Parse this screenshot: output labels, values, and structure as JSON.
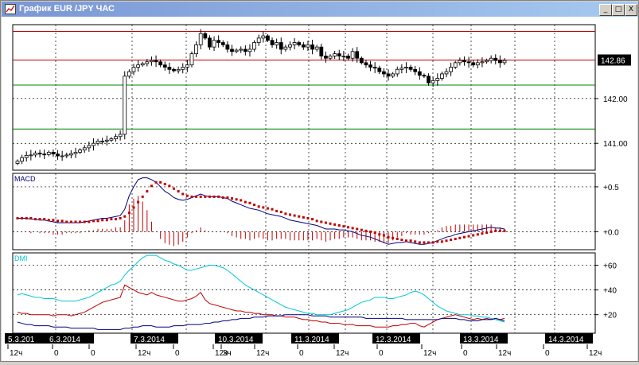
{
  "window": {
    "title": "График EUR /JPY ЧАС",
    "min_icon": "minimize-icon",
    "max_icon": "maximize-icon",
    "close_icon": "close-icon",
    "min_glyph": "_",
    "max_glyph": "□",
    "close_glyph": "X"
  },
  "colors": {
    "background": "#ffffff",
    "grid": "#000000",
    "candle": "#000000",
    "macd_line": "#000080",
    "macd_signal": "#c00000",
    "macd_hist": "#c00000",
    "dmi_adx": "#00c8d2",
    "dmi_plus": "#c00000",
    "dmi_minus": "#000080",
    "level_red": "#c00000",
    "level_green": "#008000"
  },
  "chart_data": [
    {
      "type": "candlestick",
      "title": "",
      "ylim": [
        140.4,
        143.65
      ],
      "y_ticks": [
        {
          "value": 141.0,
          "label": "141.00"
        },
        {
          "value": 142.0,
          "label": "142.00"
        }
      ],
      "current_price": {
        "value": 142.86,
        "label": "142.86"
      },
      "horizontal_levels": [
        {
          "value": 143.5,
          "color": "#c00000"
        },
        {
          "value": 142.86,
          "color": "#c00000"
        },
        {
          "value": 142.3,
          "color": "#008000"
        },
        {
          "value": 141.32,
          "color": "#008000"
        }
      ],
      "close": [
        140.6,
        140.68,
        140.73,
        140.74,
        140.78,
        140.76,
        140.75,
        140.8,
        140.76,
        140.72,
        140.72,
        140.74,
        140.77,
        140.8,
        140.85,
        140.9,
        140.95,
        141.0,
        141.05,
        141.05,
        141.07,
        141.1,
        141.15,
        141.2,
        142.5,
        142.6,
        142.7,
        142.75,
        142.78,
        142.82,
        142.85,
        142.82,
        142.75,
        142.7,
        142.65,
        142.62,
        142.65,
        142.7,
        142.75,
        143.0,
        143.2,
        143.45,
        143.35,
        143.15,
        143.3,
        143.25,
        143.2,
        143.1,
        143.05,
        143.08,
        143.1,
        143.05,
        143.1,
        143.25,
        143.35,
        143.4,
        143.3,
        143.2,
        143.25,
        143.1,
        143.15,
        143.2,
        143.25,
        143.2,
        143.15,
        143.2,
        143.1,
        143.15,
        142.95,
        142.9,
        142.95,
        143.0,
        142.95,
        142.95,
        142.9,
        143.05,
        142.9,
        142.8,
        142.75,
        142.7,
        142.68,
        142.6,
        142.55,
        142.5,
        142.55,
        142.65,
        142.68,
        142.7,
        142.65,
        142.6,
        142.52,
        142.5,
        142.35,
        142.4,
        142.45,
        142.55,
        142.6,
        142.7,
        142.8,
        142.85,
        142.82,
        142.8,
        142.75,
        142.8,
        142.82,
        142.85,
        142.9,
        142.85,
        142.8,
        142.85
      ]
    },
    {
      "type": "line",
      "title": "MACD",
      "ylim": [
        -0.2,
        0.65
      ],
      "y_ticks": [
        {
          "value": 0.5,
          "label": "+0.5"
        },
        {
          "value": 0.0,
          "label": "+0.0"
        }
      ],
      "series": [
        {
          "values": [
            0.15,
            0.15,
            0.15,
            0.14,
            0.14,
            0.13,
            0.13,
            0.12,
            0.11,
            0.1,
            0.1,
            0.1,
            0.1,
            0.1,
            0.1,
            0.11,
            0.12,
            0.13,
            0.14,
            0.15,
            0.15,
            0.16,
            0.17,
            0.18,
            0.25,
            0.4,
            0.5,
            0.58,
            0.6,
            0.6,
            0.58,
            0.55,
            0.5,
            0.45,
            0.42,
            0.38,
            0.36,
            0.35,
            0.36,
            0.38,
            0.4,
            0.42,
            0.4,
            0.39,
            0.39,
            0.39,
            0.38,
            0.37,
            0.34,
            0.32,
            0.3,
            0.28,
            0.26,
            0.25,
            0.24,
            0.22,
            0.2,
            0.19,
            0.18,
            0.17,
            0.15,
            0.13,
            0.12,
            0.11,
            0.1,
            0.09,
            0.08,
            0.07,
            0.05,
            0.03,
            0.03,
            0.03,
            0.02,
            0.02,
            0.01,
            0.0,
            -0.02,
            -0.04,
            -0.05,
            -0.06,
            -0.08,
            -0.1,
            -0.12,
            -0.14,
            -0.13,
            -0.12,
            -0.12,
            -0.11,
            -0.12,
            -0.13,
            -0.14,
            -0.14,
            -0.13,
            -0.12,
            -0.1,
            -0.08,
            -0.06,
            -0.05,
            -0.03,
            -0.02,
            -0.01,
            0.0,
            0.01,
            0.02,
            0.03,
            0.04,
            0.05,
            0.04,
            0.04,
            0.03
          ]
        },
        {
          "values": [
            0.15,
            0.15,
            0.15,
            0.15,
            0.14,
            0.14,
            0.14,
            0.13,
            0.13,
            0.12,
            0.12,
            0.11,
            0.11,
            0.11,
            0.11,
            0.11,
            0.11,
            0.12,
            0.12,
            0.13,
            0.13,
            0.14,
            0.14,
            0.15,
            0.17,
            0.21,
            0.27,
            0.33,
            0.39,
            0.45,
            0.51,
            0.55,
            0.55,
            0.53,
            0.51,
            0.48,
            0.45,
            0.42,
            0.4,
            0.39,
            0.39,
            0.39,
            0.39,
            0.39,
            0.39,
            0.39,
            0.38,
            0.38,
            0.37,
            0.36,
            0.35,
            0.33,
            0.32,
            0.3,
            0.28,
            0.27,
            0.26,
            0.25,
            0.23,
            0.22,
            0.2,
            0.19,
            0.18,
            0.17,
            0.16,
            0.15,
            0.14,
            0.12,
            0.11,
            0.1,
            0.09,
            0.08,
            0.07,
            0.06,
            0.05,
            0.04,
            0.03,
            0.02,
            0.01,
            0.0,
            -0.01,
            -0.03,
            -0.04,
            -0.06,
            -0.07,
            -0.08,
            -0.09,
            -0.1,
            -0.1,
            -0.11,
            -0.12,
            -0.12,
            -0.12,
            -0.12,
            -0.11,
            -0.11,
            -0.1,
            -0.09,
            -0.08,
            -0.07,
            -0.06,
            -0.05,
            -0.04,
            -0.03,
            -0.02,
            -0.01,
            0.0,
            0.01,
            0.01,
            0.01
          ]
        }
      ]
    },
    {
      "type": "line",
      "title": "DMI",
      "ylim": [
        5,
        70
      ],
      "y_ticks": [
        {
          "value": 60,
          "label": "+60"
        },
        {
          "value": 40,
          "label": "+40"
        },
        {
          "value": 20,
          "label": "+20"
        }
      ],
      "series": [
        {
          "values": [
            36,
            37,
            36,
            35,
            34,
            34,
            33,
            33,
            33,
            32,
            31,
            31,
            31,
            31,
            32,
            33,
            34,
            36,
            38,
            40,
            42,
            44,
            45,
            47,
            52,
            56,
            59,
            63,
            66,
            68,
            68,
            68,
            66,
            64,
            63,
            61,
            60,
            58,
            56,
            56,
            57,
            58,
            59,
            60,
            60,
            59,
            58,
            56,
            53,
            50,
            47,
            44,
            42,
            40,
            38,
            36,
            34,
            32,
            30,
            28,
            26,
            25,
            24,
            23,
            22,
            21,
            21,
            20,
            20,
            20,
            20,
            21,
            22,
            23,
            24,
            26,
            28,
            30,
            31,
            32,
            34,
            34,
            34,
            33,
            33,
            34,
            35,
            36,
            38,
            39,
            38,
            36,
            33,
            30,
            27,
            25,
            23,
            22,
            21,
            20,
            20,
            20,
            19,
            19,
            18,
            18,
            17,
            16,
            15,
            14
          ]
        },
        {
          "values": [
            22,
            21,
            21,
            20,
            20,
            20,
            20,
            20,
            19,
            20,
            20,
            20,
            19,
            20,
            21,
            22,
            24,
            26,
            28,
            30,
            31,
            32,
            33,
            34,
            44,
            42,
            40,
            38,
            37,
            36,
            38,
            36,
            35,
            34,
            33,
            32,
            31,
            31,
            32,
            33,
            35,
            38,
            32,
            29,
            28,
            27,
            26,
            25,
            24,
            23,
            23,
            22,
            22,
            21,
            21,
            20,
            20,
            20,
            19,
            19,
            18,
            18,
            18,
            17,
            16,
            16,
            15,
            15,
            14,
            14,
            13,
            13,
            13,
            12,
            12,
            12,
            11,
            11,
            11,
            11,
            10,
            10,
            10,
            10,
            11,
            11,
            12,
            12,
            13,
            13,
            11,
            10,
            12,
            14,
            16,
            17,
            18,
            19,
            20,
            19,
            18,
            17,
            16,
            17,
            16,
            17,
            16,
            17,
            16,
            17
          ]
        },
        {
          "values": [
            14,
            13,
            12,
            12,
            11,
            11,
            11,
            11,
            10,
            10,
            10,
            10,
            9,
            9,
            9,
            9,
            9,
            9,
            8,
            8,
            8,
            8,
            8,
            8,
            9,
            9,
            10,
            10,
            11,
            11,
            11,
            10,
            10,
            10,
            10,
            11,
            11,
            11,
            12,
            12,
            12,
            12,
            13,
            13,
            14,
            14,
            15,
            15,
            16,
            16,
            17,
            17,
            17,
            18,
            18,
            18,
            19,
            19,
            19,
            19,
            20,
            20,
            20,
            20,
            20,
            20,
            19,
            19,
            19,
            19,
            18,
            18,
            18,
            18,
            18,
            18,
            18,
            18,
            17,
            17,
            17,
            17,
            17,
            17,
            17,
            17,
            17,
            16,
            16,
            16,
            16,
            16,
            16,
            16,
            16,
            17,
            17,
            17,
            17,
            16,
            16,
            15,
            15,
            15,
            16,
            16,
            16,
            17,
            16,
            15
          ]
        }
      ]
    }
  ],
  "x_axis": {
    "date_labels": [
      "5.3.201",
      "6.3.2014",
      "7.3.2014",
      "10.3.2014",
      "11.3.2014",
      "12.3.2014",
      "13.3.2014",
      "14.3.2014"
    ],
    "hour_labels": [
      "12ч",
      "0",
      "0",
      "12ч",
      "0",
      "12ч",
      "3ч",
      "12ч",
      "0",
      "12ч",
      "0",
      "12ч",
      "0",
      "12ч",
      "0",
      "12ч",
      "0"
    ]
  }
}
